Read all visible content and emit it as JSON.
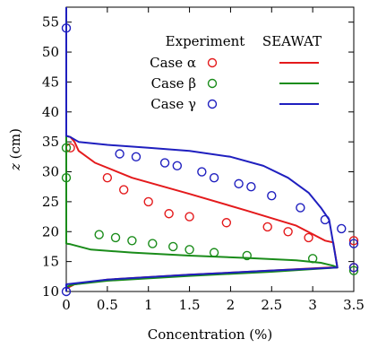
{
  "chart_data": {
    "type": "line",
    "xlabel": "Concentration (%)",
    "ylabel": "z (cm)",
    "xlim": [
      0,
      3.5
    ],
    "ylim": [
      10,
      57.5
    ],
    "x_ticks": [
      "0",
      "0.5",
      "1",
      "1.5",
      "2",
      "2.5",
      "3",
      "3.5"
    ],
    "y_ticks": [
      "10",
      "15",
      "20",
      "25",
      "30",
      "35",
      "40",
      "45",
      "50",
      "55"
    ],
    "grid": false,
    "legend": {
      "placement": "top-right",
      "headers": [
        "Experiment",
        "SEAWAT"
      ],
      "entries": [
        "Case α",
        "Case β",
        "Case γ"
      ]
    },
    "series": [
      {
        "name": "Case α",
        "color": "#e41a1c",
        "experiment": {
          "x": [
            0.05,
            0.5,
            0.7,
            1.0,
            1.25,
            1.5,
            1.95,
            2.45,
            2.7,
            2.95,
            3.5,
            3.5
          ],
          "y": [
            34.0,
            29.0,
            27.0,
            25.0,
            23.0,
            22.5,
            21.5,
            20.8,
            20.0,
            19.0,
            18.5,
            14.0
          ]
        },
        "seawat": {
          "x": [
            0.0,
            0.0,
            0.05,
            0.1,
            0.15,
            0.35,
            0.8,
            1.5,
            2.2,
            2.8,
            3.15,
            3.25,
            3.3,
            3.2,
            2.5,
            1.5,
            0.5,
            0.1,
            0.0,
            0.0
          ],
          "y": [
            57.5,
            36.0,
            35.8,
            35.0,
            33.5,
            31.5,
            29.0,
            26.3,
            23.5,
            21.0,
            18.5,
            18.2,
            14.0,
            14.0,
            13.5,
            12.8,
            12.0,
            11.2,
            10.5,
            10.0
          ]
        }
      },
      {
        "name": "Case β",
        "color": "#1a8c1a",
        "experiment": {
          "x": [
            0.0,
            0.0,
            0.4,
            0.6,
            0.8,
            1.05,
            1.3,
            1.5,
            1.8,
            2.2,
            3.0,
            3.5
          ],
          "y": [
            34.0,
            29.0,
            19.5,
            19.0,
            18.5,
            18.0,
            17.5,
            17.0,
            16.5,
            16.0,
            15.5,
            13.5
          ]
        },
        "seawat": {
          "x": [
            0.0,
            0.0,
            0.05,
            0.3,
            0.8,
            1.5,
            2.2,
            2.8,
            3.1,
            3.25,
            3.3,
            2.5,
            1.5,
            0.5,
            0.1,
            0.0,
            0.0
          ],
          "y": [
            57.5,
            18.0,
            17.9,
            17.0,
            16.5,
            16.0,
            15.6,
            15.2,
            14.8,
            14.3,
            14.0,
            13.3,
            12.6,
            11.8,
            11.2,
            10.8,
            10.0
          ]
        }
      },
      {
        "name": "Case γ",
        "color": "#1f1fbf",
        "experiment": {
          "x": [
            0.0,
            0.65,
            0.85,
            1.2,
            1.35,
            1.65,
            1.8,
            2.1,
            2.25,
            2.5,
            2.85,
            3.15,
            3.35,
            3.5,
            3.5,
            0.0
          ],
          "y": [
            54.0,
            33.0,
            32.5,
            31.5,
            31.0,
            30.0,
            29.0,
            28.0,
            27.5,
            26.0,
            24.0,
            22.0,
            20.5,
            18.0,
            14.0,
            10.0
          ]
        },
        "seawat": {
          "x": [
            0.0,
            0.0,
            0.05,
            0.15,
            0.5,
            1.0,
            1.5,
            2.0,
            2.4,
            2.7,
            2.95,
            3.1,
            3.2,
            3.25,
            3.3,
            2.5,
            1.5,
            0.5,
            0.0,
            0.0
          ],
          "y": [
            57.5,
            36.0,
            35.8,
            35.0,
            34.5,
            34.0,
            33.5,
            32.5,
            31.0,
            29.0,
            26.5,
            24.0,
            22.0,
            18.0,
            14.0,
            13.5,
            12.8,
            12.0,
            11.2,
            10.0
          ]
        }
      }
    ]
  }
}
